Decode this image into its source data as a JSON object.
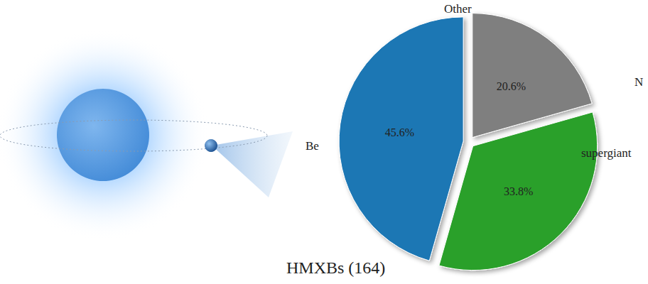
{
  "chart_data": {
    "type": "pie",
    "title": "HMXBs (164)",
    "categories": [
      "Be",
      "supergiant",
      "Other"
    ],
    "values": [
      45.6,
      33.8,
      20.6
    ],
    "value_labels": [
      "45.6%",
      "33.8%",
      "20.6%"
    ],
    "colors": [
      "#1f77b4",
      "#2ca02c",
      "#7f7f7f"
    ],
    "data_labels": true,
    "annotations": [
      "N"
    ]
  }
}
